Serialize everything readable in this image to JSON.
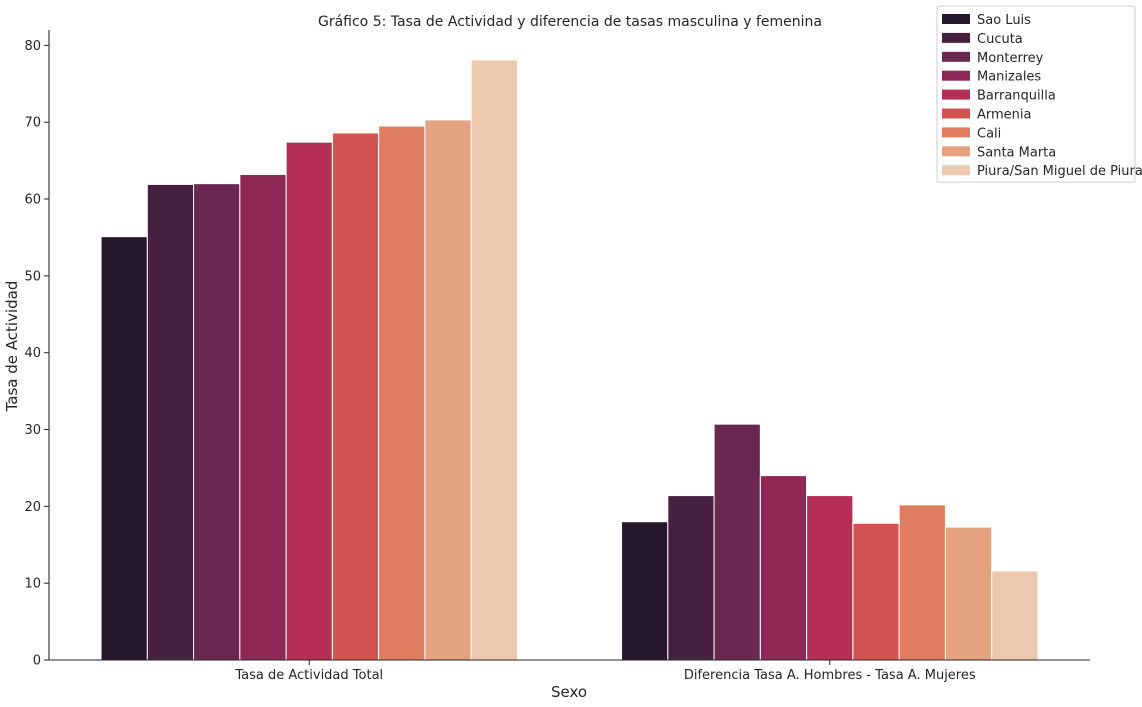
{
  "chart_data": {
    "type": "bar",
    "title": "Gráfico 5: Tasa de Actividad y diferencia de tasas masculina y femenina",
    "xlabel": "Sexo",
    "ylabel": "Tasa de Actividad",
    "ylim": [
      0,
      82
    ],
    "yticks": [
      0,
      10,
      20,
      30,
      40,
      50,
      60,
      70,
      80
    ],
    "legend_position": "top-right",
    "categories": [
      "Tasa de Actividad Total",
      "Diferencia Tasa A. Hombres - Tasa A. Mujeres"
    ],
    "series": [
      {
        "name": "Sao Luis",
        "color": "#26172d",
        "values": [
          55.1,
          18.0
        ]
      },
      {
        "name": "Cucuta",
        "color": "#46213f",
        "values": [
          61.9,
          21.4
        ]
      },
      {
        "name": "Monterrey",
        "color": "#6a2850",
        "values": [
          62.0,
          30.7
        ]
      },
      {
        "name": "Manizales",
        "color": "#8e2957",
        "values": [
          63.2,
          24.0
        ]
      },
      {
        "name": "Barranquilla",
        "color": "#b52e55",
        "values": [
          67.4,
          21.4
        ]
      },
      {
        "name": "Armenia",
        "color": "#d25450",
        "values": [
          68.6,
          17.8
        ]
      },
      {
        "name": "Cali",
        "color": "#e07d60",
        "values": [
          69.5,
          20.2
        ]
      },
      {
        "name": "Santa Marta",
        "color": "#e5a280",
        "values": [
          70.3,
          17.3
        ]
      },
      {
        "name": "Piura/San Miguel de Piura",
        "color": "#ecc9ae",
        "values": [
          78.1,
          11.6
        ]
      }
    ]
  }
}
